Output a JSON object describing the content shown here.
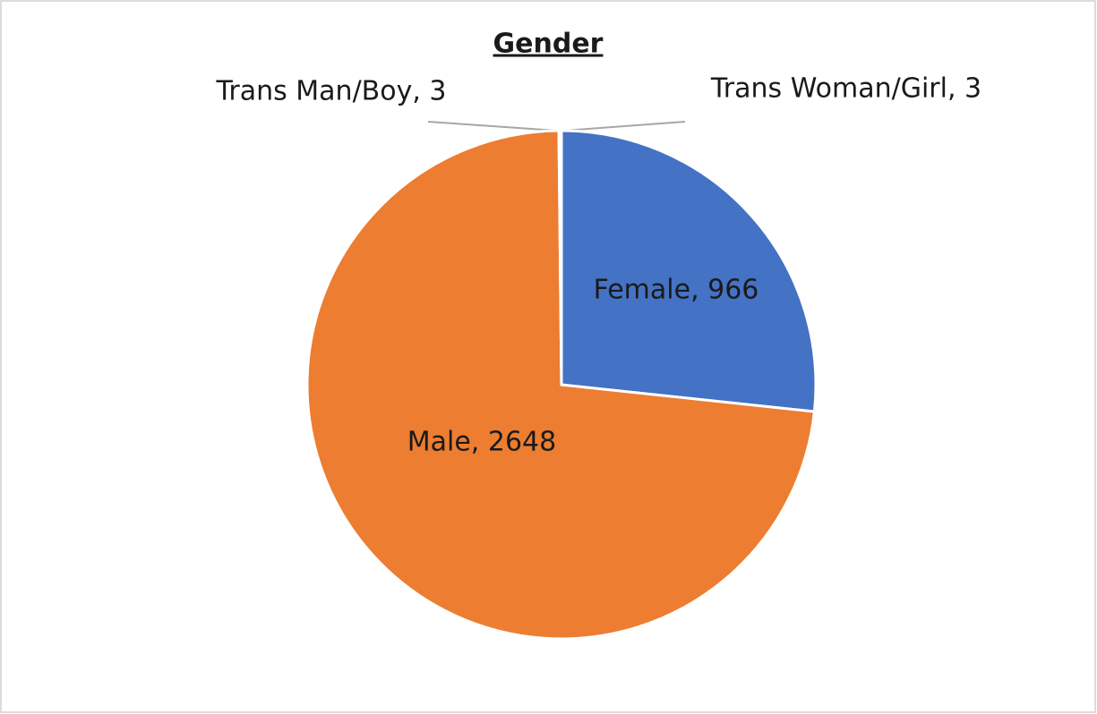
{
  "chart_data": {
    "type": "pie",
    "title": "Gender",
    "categories": [
      "Female",
      "Male",
      "Trans Man/Boy",
      "Trans Woman/Girl"
    ],
    "values": [
      966,
      2648,
      3,
      3
    ],
    "value_labels": [
      "Female, 966",
      "Male, 2648",
      "Trans Man/Boy, 3",
      "Trans Woman/Girl, 3"
    ],
    "colors": [
      "#4472c4",
      "#ed7d31",
      "#a5a5a5",
      "#ffc000"
    ]
  }
}
